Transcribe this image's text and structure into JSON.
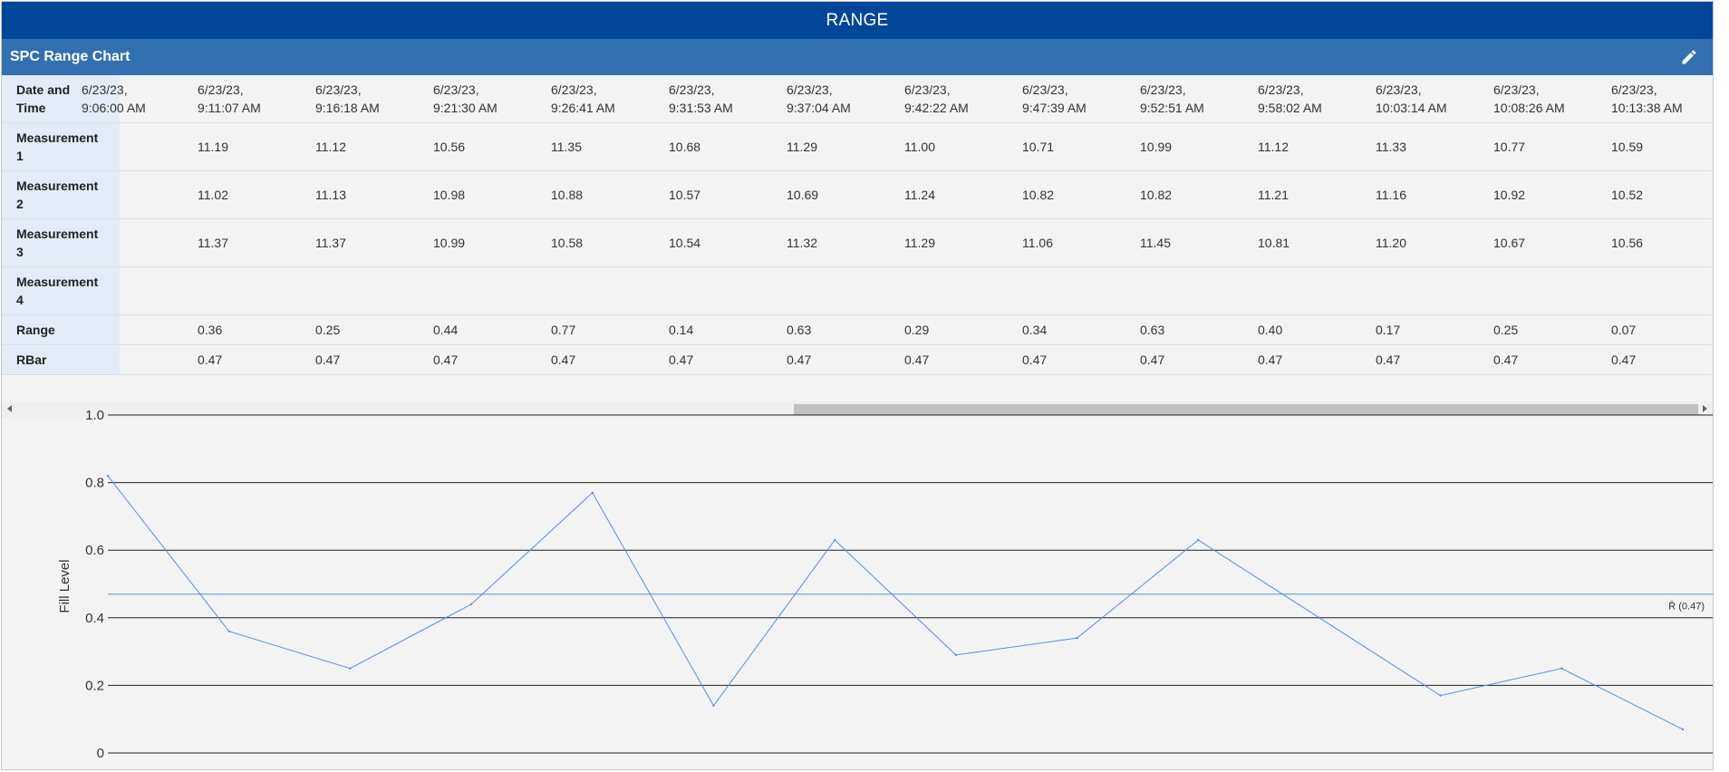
{
  "window": {
    "title": "RANGE"
  },
  "panel": {
    "title": "SPC Range Chart",
    "edit_icon": "pencil-icon"
  },
  "table": {
    "row_headers": {
      "datetime": "Date and\nTime",
      "m1": "Measurement\n1",
      "m2": "Measurement\n2",
      "m3": "Measurement\n3",
      "m4": "Measurement\n4",
      "range": "Range",
      "rbar": "RBar"
    },
    "clipped_first_column": {
      "datetime": "6/23/23,\n9:06:00 AM"
    },
    "columns": [
      {
        "datetime": "6/23/23,\n9:11:07 AM",
        "m1": "11.19",
        "m2": "11.02",
        "m3": "11.37",
        "m4": "",
        "range": "0.36",
        "rbar": "0.47"
      },
      {
        "datetime": "6/23/23,\n9:16:18 AM",
        "m1": "11.12",
        "m2": "11.13",
        "m3": "11.37",
        "m4": "",
        "range": "0.25",
        "rbar": "0.47"
      },
      {
        "datetime": "6/23/23,\n9:21:30 AM",
        "m1": "10.56",
        "m2": "10.98",
        "m3": "10.99",
        "m4": "",
        "range": "0.44",
        "rbar": "0.47"
      },
      {
        "datetime": "6/23/23,\n9:26:41 AM",
        "m1": "11.35",
        "m2": "10.88",
        "m3": "10.58",
        "m4": "",
        "range": "0.77",
        "rbar": "0.47"
      },
      {
        "datetime": "6/23/23,\n9:31:53 AM",
        "m1": "10.68",
        "m2": "10.57",
        "m3": "10.54",
        "m4": "",
        "range": "0.14",
        "rbar": "0.47"
      },
      {
        "datetime": "6/23/23,\n9:37:04 AM",
        "m1": "11.29",
        "m2": "10.69",
        "m3": "11.32",
        "m4": "",
        "range": "0.63",
        "rbar": "0.47"
      },
      {
        "datetime": "6/23/23,\n9:42:22 AM",
        "m1": "11.00",
        "m2": "11.24",
        "m3": "11.29",
        "m4": "",
        "range": "0.29",
        "rbar": "0.47"
      },
      {
        "datetime": "6/23/23,\n9:47:39 AM",
        "m1": "10.71",
        "m2": "10.82",
        "m3": "11.06",
        "m4": "",
        "range": "0.34",
        "rbar": "0.47"
      },
      {
        "datetime": "6/23/23,\n9:52:51 AM",
        "m1": "10.99",
        "m2": "10.82",
        "m3": "11.45",
        "m4": "",
        "range": "0.63",
        "rbar": "0.47"
      },
      {
        "datetime": "6/23/23,\n9:58:02 AM",
        "m1": "11.12",
        "m2": "11.21",
        "m3": "10.81",
        "m4": "",
        "range": "0.40",
        "rbar": "0.47"
      },
      {
        "datetime": "6/23/23,\n10:03:14 AM",
        "m1": "11.33",
        "m2": "11.16",
        "m3": "11.20",
        "m4": "",
        "range": "0.17",
        "rbar": "0.47"
      },
      {
        "datetime": "6/23/23,\n10:08:26 AM",
        "m1": "10.77",
        "m2": "10.92",
        "m3": "10.67",
        "m4": "",
        "range": "0.25",
        "rbar": "0.47"
      },
      {
        "datetime": "6/23/23,\n10:13:38 AM",
        "m1": "10.59",
        "m2": "10.52",
        "m3": "10.56",
        "m4": "",
        "range": "0.07",
        "rbar": "0.47"
      }
    ]
  },
  "chart_data": {
    "type": "line",
    "ylabel": "Fill Level",
    "xlabel": "",
    "ylim": [
      0,
      1.0
    ],
    "yticks": [
      "0",
      "0.2",
      "0.4",
      "0.6",
      "0.8",
      "1.0"
    ],
    "grid": true,
    "series": [
      {
        "values": [
          0.82,
          0.36,
          0.25,
          0.44,
          0.77,
          0.14,
          0.63,
          0.29,
          0.34,
          0.63,
          0.4,
          0.17,
          0.25,
          0.07
        ],
        "color": "#5b8fd6"
      }
    ],
    "reference_line": {
      "label": "R̄ (0.47)",
      "value": 0.47,
      "color": "#5b8fd6"
    }
  },
  "colors": {
    "title_bar": "#00479a",
    "panel_bar": "#3370b2",
    "row_header_bg": "#e3ecf6",
    "grid_line": "#222222"
  }
}
